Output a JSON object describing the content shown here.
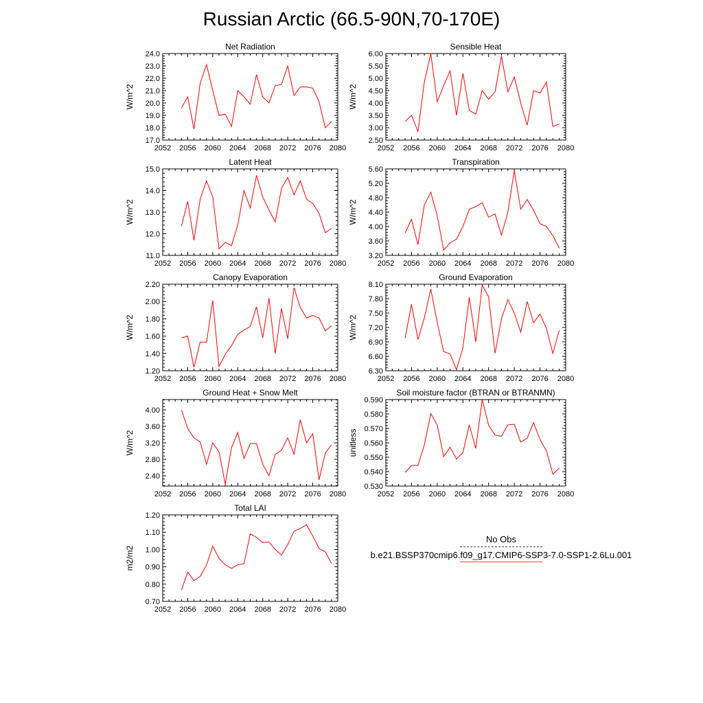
{
  "page_title": "Russian Arctic (66.5-90N,70-170E)",
  "legend": {
    "obs_label": "No Obs",
    "model_label": "b.e21.BSSP370cmip6.f09_g17.CMIP6-SSP3-7.0-SSP1-2.6Lu.001",
    "obs_color": "#3a3ab0",
    "model_color": "#ff0000"
  },
  "chart_data": [
    {
      "type": "line",
      "title": "Net Radiation",
      "ylabel": "W/m^2",
      "xlim": [
        2052,
        2080
      ],
      "ylim": [
        17.0,
        24.0
      ],
      "xticks": [
        "2052",
        "2056",
        "2060",
        "2064",
        "2068",
        "2072",
        "2076",
        "2080"
      ],
      "yticks": [
        "17.0",
        "18.0",
        "19.0",
        "20.0",
        "21.0",
        "22.0",
        "23.0",
        "24.0"
      ],
      "x": [
        2055,
        2056,
        2057,
        2058,
        2059,
        2060,
        2061,
        2062,
        2063,
        2064,
        2065,
        2066,
        2067,
        2068,
        2069,
        2070,
        2071,
        2072,
        2073,
        2074,
        2075,
        2076,
        2077,
        2078,
        2079
      ],
      "values": [
        19.6,
        20.5,
        17.9,
        21.6,
        23.1,
        21.0,
        19.0,
        19.1,
        18.1,
        21.0,
        20.5,
        19.9,
        22.3,
        20.5,
        20.0,
        21.4,
        21.5,
        23.0,
        20.6,
        21.3,
        21.3,
        21.2,
        20.1,
        18.0,
        18.5
      ]
    },
    {
      "type": "line",
      "title": "Sensible Heat",
      "ylabel": "W/m^2",
      "xlim": [
        2052,
        2080
      ],
      "ylim": [
        2.5,
        6.0
      ],
      "xticks": [
        "2052",
        "2056",
        "2060",
        "2064",
        "2068",
        "2072",
        "2076",
        "2080"
      ],
      "yticks": [
        "2.50",
        "3.00",
        "3.50",
        "4.00",
        "4.50",
        "5.00",
        "5.50",
        "6.00"
      ],
      "x": [
        2055,
        2056,
        2057,
        2058,
        2059,
        2060,
        2061,
        2062,
        2063,
        2064,
        2065,
        2066,
        2067,
        2068,
        2069,
        2070,
        2071,
        2072,
        2073,
        2074,
        2075,
        2076,
        2077,
        2078,
        2079
      ],
      "values": [
        3.25,
        3.5,
        2.85,
        4.85,
        6.0,
        4.05,
        4.7,
        5.3,
        3.5,
        5.2,
        3.7,
        3.55,
        4.5,
        4.15,
        4.45,
        5.9,
        4.45,
        5.05,
        4.0,
        3.1,
        4.5,
        4.4,
        4.85,
        3.05,
        3.15
      ]
    },
    {
      "type": "line",
      "title": "Latent Heat",
      "ylabel": "W/m^2",
      "xlim": [
        2052,
        2080
      ],
      "ylim": [
        11.0,
        15.0
      ],
      "xticks": [
        "2052",
        "2056",
        "2060",
        "2064",
        "2068",
        "2072",
        "2076",
        "2080"
      ],
      "yticks": [
        "11.0",
        "12.0",
        "13.0",
        "14.0",
        "15.0"
      ],
      "x": [
        2055,
        2056,
        2057,
        2058,
        2059,
        2060,
        2061,
        2062,
        2063,
        2064,
        2065,
        2066,
        2067,
        2068,
        2069,
        2070,
        2071,
        2072,
        2073,
        2074,
        2075,
        2076,
        2077,
        2078,
        2079
      ],
      "values": [
        12.35,
        13.5,
        11.7,
        13.6,
        14.45,
        13.7,
        11.3,
        11.6,
        11.45,
        12.4,
        14.0,
        13.2,
        14.7,
        13.7,
        13.1,
        12.55,
        14.1,
        14.6,
        13.8,
        14.45,
        13.6,
        13.4,
        12.95,
        12.05,
        12.25
      ]
    },
    {
      "type": "line",
      "title": "Transpiration",
      "ylabel": "W/m^2",
      "xlim": [
        2052,
        2080
      ],
      "ylim": [
        3.2,
        5.6
      ],
      "xticks": [
        "2052",
        "2056",
        "2060",
        "2064",
        "2068",
        "2072",
        "2076",
        "2080"
      ],
      "yticks": [
        "3.20",
        "3.60",
        "4.00",
        "4.40",
        "4.80",
        "5.20",
        "5.60"
      ],
      "x": [
        2055,
        2056,
        2057,
        2058,
        2059,
        2060,
        2061,
        2062,
        2063,
        2064,
        2065,
        2066,
        2067,
        2068,
        2069,
        2070,
        2071,
        2072,
        2073,
        2074,
        2075,
        2076,
        2077,
        2078,
        2079
      ],
      "values": [
        3.82,
        4.2,
        3.5,
        4.6,
        4.95,
        4.3,
        3.35,
        3.55,
        3.65,
        4.0,
        4.48,
        4.55,
        4.66,
        4.26,
        4.35,
        3.76,
        4.4,
        5.55,
        4.48,
        4.75,
        4.45,
        4.08,
        4.0,
        3.75,
        3.4
      ]
    },
    {
      "type": "line",
      "title": "Canopy Evaporation",
      "ylabel": "W/m^2",
      "xlim": [
        2052,
        2080
      ],
      "ylim": [
        1.2,
        2.2
      ],
      "xticks": [
        "2052",
        "2056",
        "2060",
        "2064",
        "2068",
        "2072",
        "2076",
        "2080"
      ],
      "yticks": [
        "1.20",
        "1.40",
        "1.60",
        "1.80",
        "2.00",
        "2.20"
      ],
      "x": [
        2055,
        2056,
        2057,
        2058,
        2059,
        2060,
        2061,
        2062,
        2063,
        2064,
        2065,
        2066,
        2067,
        2068,
        2069,
        2070,
        2071,
        2072,
        2073,
        2074,
        2075,
        2076,
        2077,
        2078,
        2079
      ],
      "values": [
        1.58,
        1.6,
        1.24,
        1.53,
        1.53,
        2.01,
        1.25,
        1.39,
        1.49,
        1.62,
        1.67,
        1.71,
        1.94,
        1.58,
        2.04,
        1.4,
        1.92,
        1.57,
        2.16,
        1.93,
        1.81,
        1.84,
        1.81,
        1.66,
        1.72
      ]
    },
    {
      "type": "line",
      "title": "Ground Evaporation",
      "ylabel": "W/m^2",
      "xlim": [
        2052,
        2080
      ],
      "ylim": [
        6.3,
        8.1
      ],
      "xticks": [
        "2052",
        "2056",
        "2060",
        "2064",
        "2068",
        "2072",
        "2076",
        "2080"
      ],
      "yticks": [
        "6.30",
        "6.60",
        "6.90",
        "7.20",
        "7.50",
        "7.80",
        "8.10"
      ],
      "x": [
        2055,
        2056,
        2057,
        2058,
        2059,
        2060,
        2061,
        2062,
        2063,
        2064,
        2065,
        2066,
        2067,
        2068,
        2069,
        2070,
        2071,
        2072,
        2073,
        2074,
        2075,
        2076,
        2077,
        2078,
        2079
      ],
      "values": [
        6.98,
        7.68,
        6.95,
        7.4,
        8.0,
        7.3,
        6.7,
        6.65,
        6.32,
        6.78,
        7.83,
        6.9,
        8.08,
        7.84,
        6.66,
        7.38,
        7.78,
        7.5,
        7.1,
        7.74,
        7.3,
        7.48,
        7.18,
        6.66,
        7.14
      ]
    },
    {
      "type": "line",
      "title": "Ground Heat + Snow Melt",
      "ylabel": "W/m^2",
      "xlim": [
        2052,
        2080
      ],
      "ylim": [
        2.15,
        4.25
      ],
      "xticks": [
        "2052",
        "2056",
        "2060",
        "2064",
        "2068",
        "2072",
        "2076",
        "2080"
      ],
      "yticks": [
        "2.40",
        "2.80",
        "3.20",
        "3.60",
        "4.00"
      ],
      "x": [
        2055,
        2056,
        2057,
        2058,
        2059,
        2060,
        2061,
        2062,
        2063,
        2064,
        2065,
        2066,
        2067,
        2068,
        2069,
        2070,
        2071,
        2072,
        2073,
        2074,
        2075,
        2076,
        2077,
        2078,
        2079
      ],
      "values": [
        4.0,
        3.55,
        3.32,
        3.22,
        2.68,
        3.2,
        2.98,
        2.2,
        3.08,
        3.45,
        2.82,
        3.18,
        3.18,
        2.68,
        2.4,
        2.92,
        3.02,
        3.32,
        2.92,
        3.76,
        3.2,
        3.42,
        2.3,
        2.95,
        3.15
      ]
    },
    {
      "type": "line",
      "title": "Soil moisture factor (BTRAN or BTRANMN)",
      "ylabel": "unitless",
      "xlim": [
        2052,
        2080
      ],
      "ylim": [
        0.53,
        0.59
      ],
      "xticks": [
        "2052",
        "2056",
        "2060",
        "2064",
        "2068",
        "2072",
        "2076",
        "2080"
      ],
      "yticks": [
        "0.530",
        "0.540",
        "0.550",
        "0.560",
        "0.570",
        "0.580",
        "0.590"
      ],
      "x": [
        2055,
        2056,
        2057,
        2058,
        2059,
        2060,
        2061,
        2062,
        2063,
        2064,
        2065,
        2066,
        2067,
        2068,
        2069,
        2070,
        2071,
        2072,
        2073,
        2074,
        2075,
        2076,
        2077,
        2078,
        2079
      ],
      "values": [
        0.5395,
        0.5443,
        0.5443,
        0.5585,
        0.5803,
        0.5722,
        0.5505,
        0.5569,
        0.5487,
        0.5533,
        0.5725,
        0.5561,
        0.59,
        0.5722,
        0.5654,
        0.5645,
        0.5725,
        0.5728,
        0.5605,
        0.5632,
        0.574,
        0.5622,
        0.5545,
        0.5383,
        0.5425
      ]
    },
    {
      "type": "line",
      "title": "Total LAI",
      "ylabel": "m2/m2",
      "xlim": [
        2052,
        2080
      ],
      "ylim": [
        0.7,
        1.2
      ],
      "xticks": [
        "2052",
        "2056",
        "2060",
        "2064",
        "2068",
        "2072",
        "2076",
        "2080"
      ],
      "yticks": [
        "0.70",
        "0.80",
        "0.90",
        "1.00",
        "1.10",
        "1.20"
      ],
      "x": [
        2055,
        2056,
        2057,
        2058,
        2059,
        2060,
        2061,
        2062,
        2063,
        2064,
        2065,
        2066,
        2067,
        2068,
        2069,
        2070,
        2071,
        2072,
        2073,
        2074,
        2075,
        2076,
        2077,
        2078,
        2079
      ],
      "values": [
        0.765,
        0.87,
        0.82,
        0.845,
        0.91,
        1.02,
        0.948,
        0.912,
        0.89,
        0.912,
        0.918,
        1.09,
        1.07,
        1.04,
        1.042,
        1.0,
        0.968,
        1.028,
        1.106,
        1.122,
        1.142,
        1.078,
        1.006,
        0.986,
        0.92
      ]
    }
  ]
}
